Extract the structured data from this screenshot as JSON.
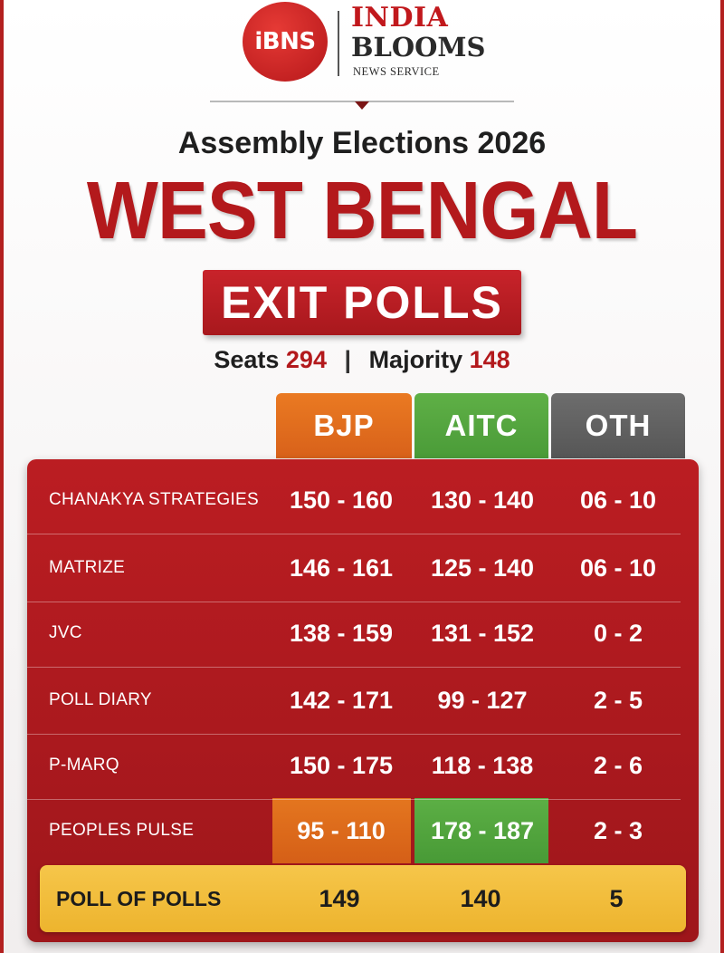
{
  "brand": {
    "logo_text": "iBNS",
    "name_line1": "INDIA",
    "name_line2": "BLOOMS",
    "name_line3": "NEWS SERVICE",
    "logo_color": "#c1181c"
  },
  "header": {
    "subtitle": "Assembly Elections 2026",
    "title": "WEST BENGAL",
    "banner": "EXIT POLLS",
    "seats_label": "Seats",
    "seats_value": "294",
    "separator": "|",
    "majority_label": "Majority",
    "majority_value": "148"
  },
  "parties": [
    {
      "name": "BJP",
      "color": "#e06d1f"
    },
    {
      "name": "AITC",
      "color": "#53a63e"
    },
    {
      "name": "OTH",
      "color": "#626262"
    }
  ],
  "polls": [
    {
      "agency": "CHANAKYA STRATEGIES",
      "bjp": "150 - 160",
      "aitc": "130 - 140",
      "oth": "06 - 10"
    },
    {
      "agency": "MATRIZE",
      "bjp": "146 - 161",
      "aitc": "125 - 140",
      "oth": "06 - 10"
    },
    {
      "agency": "JVC",
      "bjp": "138 - 159",
      "aitc": "131 - 152",
      "oth": "0 - 2"
    },
    {
      "agency": "POLL DIARY",
      "bjp": "142 - 171",
      "aitc": "99 - 127",
      "oth": "2 - 5"
    },
    {
      "agency": "P-MARQ",
      "bjp": "150 - 175",
      "aitc": "118 - 138",
      "oth": "2 - 6"
    },
    {
      "agency": "PEOPLES PULSE",
      "bjp": "95 - 110",
      "aitc": "178 - 187",
      "oth": "2 - 3"
    }
  ],
  "poll_of_polls": {
    "label": "POLL OF POLLS",
    "bjp": "149",
    "aitc": "140",
    "oth": "5"
  },
  "colors": {
    "panel_red": "#b01a1f",
    "highlight_gold": "#f2bd3c"
  }
}
